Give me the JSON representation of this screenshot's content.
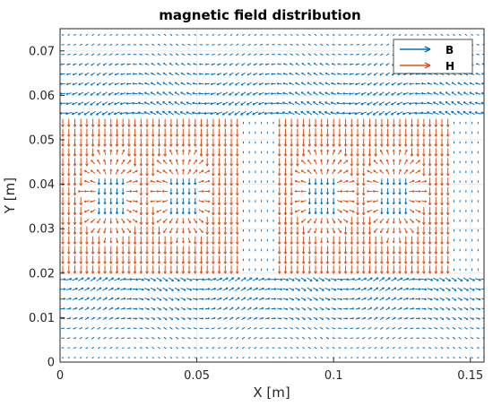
{
  "chart_data": {
    "type": "quiver",
    "title": "magnetic field distribution",
    "xlabel": "X [m]",
    "ylabel": "Y [m]",
    "xlim": [
      0,
      0.155
    ],
    "ylim": [
      0,
      0.075
    ],
    "xticks": [
      0,
      0.05,
      0.1,
      0.15
    ],
    "xtick_labels": [
      "0",
      "0.05",
      "0.1",
      "0.15"
    ],
    "yticks": [
      0,
      0.01,
      0.02,
      0.03,
      0.04,
      0.05,
      0.06,
      0.07
    ],
    "ytick_labels": [
      "0",
      "0.01",
      "0.02",
      "0.03",
      "0.04",
      "0.05",
      "0.06",
      "0.07"
    ],
    "grid": true,
    "legend_position": "top-right",
    "series": [
      {
        "name": "B",
        "color": "#0072BD"
      },
      {
        "name": "H",
        "color": "#D95319"
      }
    ],
    "regions": {
      "h_blocks": [
        {
          "x": [
            0.0,
            0.065
          ],
          "y": [
            0.02,
            0.056
          ]
        },
        {
          "x": [
            0.078,
            0.143
          ],
          "y": [
            0.02,
            0.056
          ]
        }
      ],
      "b_cores": [
        {
          "x": [
            0.013,
            0.024
          ],
          "y": [
            0.034,
            0.042
          ]
        },
        {
          "x": [
            0.039,
            0.05
          ],
          "y": [
            0.034,
            0.042
          ]
        },
        {
          "x": [
            0.091,
            0.102
          ],
          "y": [
            0.034,
            0.042
          ]
        },
        {
          "x": [
            0.117,
            0.128
          ],
          "y": [
            0.034,
            0.042
          ]
        }
      ],
      "b_gaps": [
        {
          "x": [
            0.065,
            0.078
          ],
          "y": [
            0.02,
            0.056
          ]
        },
        {
          "x": [
            0.143,
            0.155
          ],
          "y": [
            0.02,
            0.056
          ]
        }
      ]
    }
  }
}
